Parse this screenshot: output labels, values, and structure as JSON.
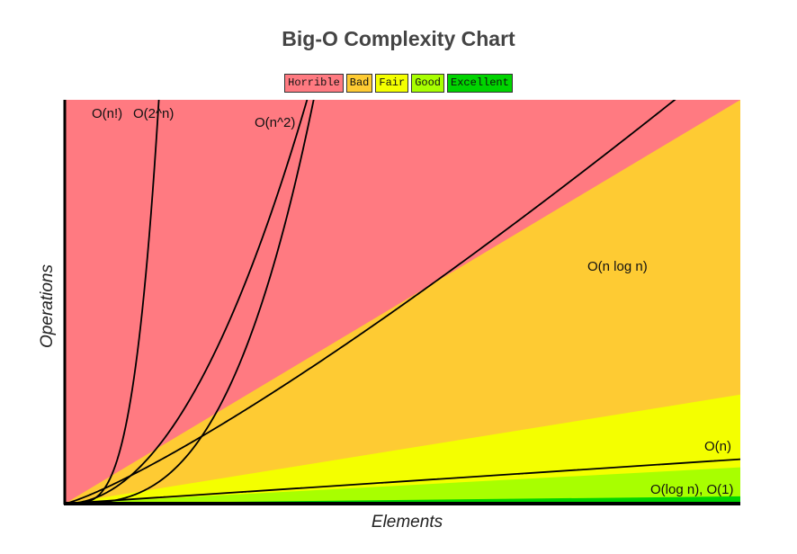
{
  "chart_data": {
    "type": "area",
    "title": "Big-O Complexity Chart",
    "xlabel": "Elements",
    "ylabel": "Operations",
    "xlim": [
      0,
      100
    ],
    "ylim": [
      0,
      1000
    ],
    "grid": false,
    "legend_placement": "top-center",
    "legend": [
      {
        "label": "Horrible",
        "color": "#ff7a81"
      },
      {
        "label": "Bad",
        "color": "#fecb33"
      },
      {
        "label": "Fair",
        "color": "#f4ff00"
      },
      {
        "label": "Good",
        "color": "#a8ff00"
      },
      {
        "label": "Excellent",
        "color": "#00d400"
      }
    ],
    "regions": [
      {
        "name": "Horrible",
        "color": "#ff7a81",
        "upper_slope": null
      },
      {
        "name": "Bad",
        "color": "#fecb33",
        "upper_slope": 10
      },
      {
        "name": "Fair",
        "color": "#f4ff00",
        "upper_slope": 2.7
      },
      {
        "name": "Good",
        "color": "#a8ff00",
        "upper_slope": 0.9
      },
      {
        "name": "Excellent",
        "color": "#00d400",
        "upper_slope": 0.18
      }
    ],
    "series": [
      {
        "name": "O(n!)",
        "function": "factorial"
      },
      {
        "name": "O(2^n)",
        "function": "exponential"
      },
      {
        "name": "O(n^2)",
        "function": "quadratic"
      },
      {
        "name": "O(n log n)",
        "function": "nlogn"
      },
      {
        "name": "O(n)",
        "function": "linear"
      },
      {
        "name": "O(log n), O(1)",
        "function": "log"
      }
    ]
  }
}
